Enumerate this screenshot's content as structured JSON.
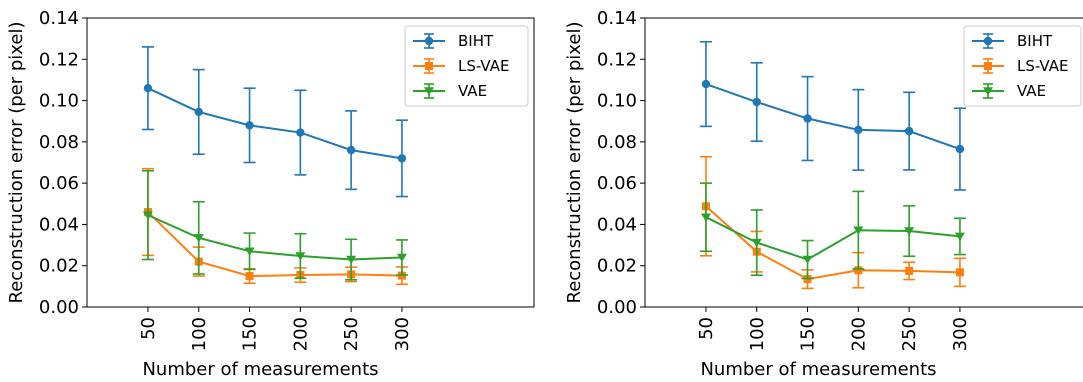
{
  "chart_data": [
    {
      "type": "line",
      "title": "",
      "xlabel": "Number of measurements",
      "ylabel": "Reconstruction error (per pixel)",
      "categories": [
        "50",
        "100",
        "150",
        "200",
        "250",
        "300"
      ],
      "x": [
        50,
        100,
        150,
        200,
        250,
        300
      ],
      "xlim": [
        -10,
        430
      ],
      "ylim": [
        0,
        0.14
      ],
      "yticks": [
        "0.00",
        "0.02",
        "0.04",
        "0.06",
        "0.08",
        "0.10",
        "0.12",
        "0.14"
      ],
      "error_bars": true,
      "grid": false,
      "legend_position": "top-right",
      "series": [
        {
          "name": "BIHT",
          "color": "#1f77b4",
          "marker": "circle",
          "values": [
            0.106,
            0.0945,
            0.088,
            0.0845,
            0.076,
            0.072
          ],
          "errors": [
            0.02,
            0.0205,
            0.018,
            0.0205,
            0.019,
            0.0185
          ]
        },
        {
          "name": "LS-VAE",
          "color": "#ff7f0e",
          "marker": "square",
          "values": [
            0.046,
            0.022,
            0.015,
            0.0155,
            0.0158,
            0.0152
          ],
          "errors": [
            0.021,
            0.007,
            0.0035,
            0.0035,
            0.0035,
            0.0042
          ]
        },
        {
          "name": "VAE",
          "color": "#2ca02c",
          "marker": "triangle-down",
          "values": [
            0.0445,
            0.0335,
            0.027,
            0.0247,
            0.023,
            0.024
          ],
          "errors": [
            0.0215,
            0.0175,
            0.0088,
            0.0108,
            0.0098,
            0.0085
          ]
        }
      ]
    },
    {
      "type": "line",
      "title": "",
      "xlabel": "Number of measurements",
      "ylabel": "Reconstruction error (per pixel)",
      "categories": [
        "50",
        "100",
        "150",
        "200",
        "250",
        "300"
      ],
      "x": [
        50,
        100,
        150,
        200,
        250,
        300
      ],
      "xlim": [
        -10,
        430
      ],
      "ylim": [
        0,
        0.14
      ],
      "yticks": [
        "0.00",
        "0.02",
        "0.04",
        "0.06",
        "0.08",
        "0.10",
        "0.12",
        "0.14"
      ],
      "error_bars": true,
      "grid": false,
      "legend_position": "top-right",
      "series": [
        {
          "name": "BIHT",
          "color": "#1f77b4",
          "marker": "circle",
          "values": [
            0.108,
            0.0993,
            0.0913,
            0.0858,
            0.0852,
            0.0765
          ],
          "errors": [
            0.0205,
            0.019,
            0.0203,
            0.0195,
            0.0188,
            0.0198
          ]
        },
        {
          "name": "LS-VAE",
          "color": "#ff7f0e",
          "marker": "square",
          "values": [
            0.0488,
            0.0268,
            0.0135,
            0.0178,
            0.0175,
            0.0168
          ],
          "errors": [
            0.024,
            0.0098,
            0.0045,
            0.0085,
            0.0042,
            0.0068
          ]
        },
        {
          "name": "VAE",
          "color": "#2ca02c",
          "marker": "triangle-down",
          "values": [
            0.0435,
            0.0312,
            0.023,
            0.0372,
            0.0368,
            0.0342
          ],
          "errors": [
            0.0165,
            0.0158,
            0.0092,
            0.0188,
            0.0122,
            0.0088
          ]
        }
      ]
    }
  ]
}
